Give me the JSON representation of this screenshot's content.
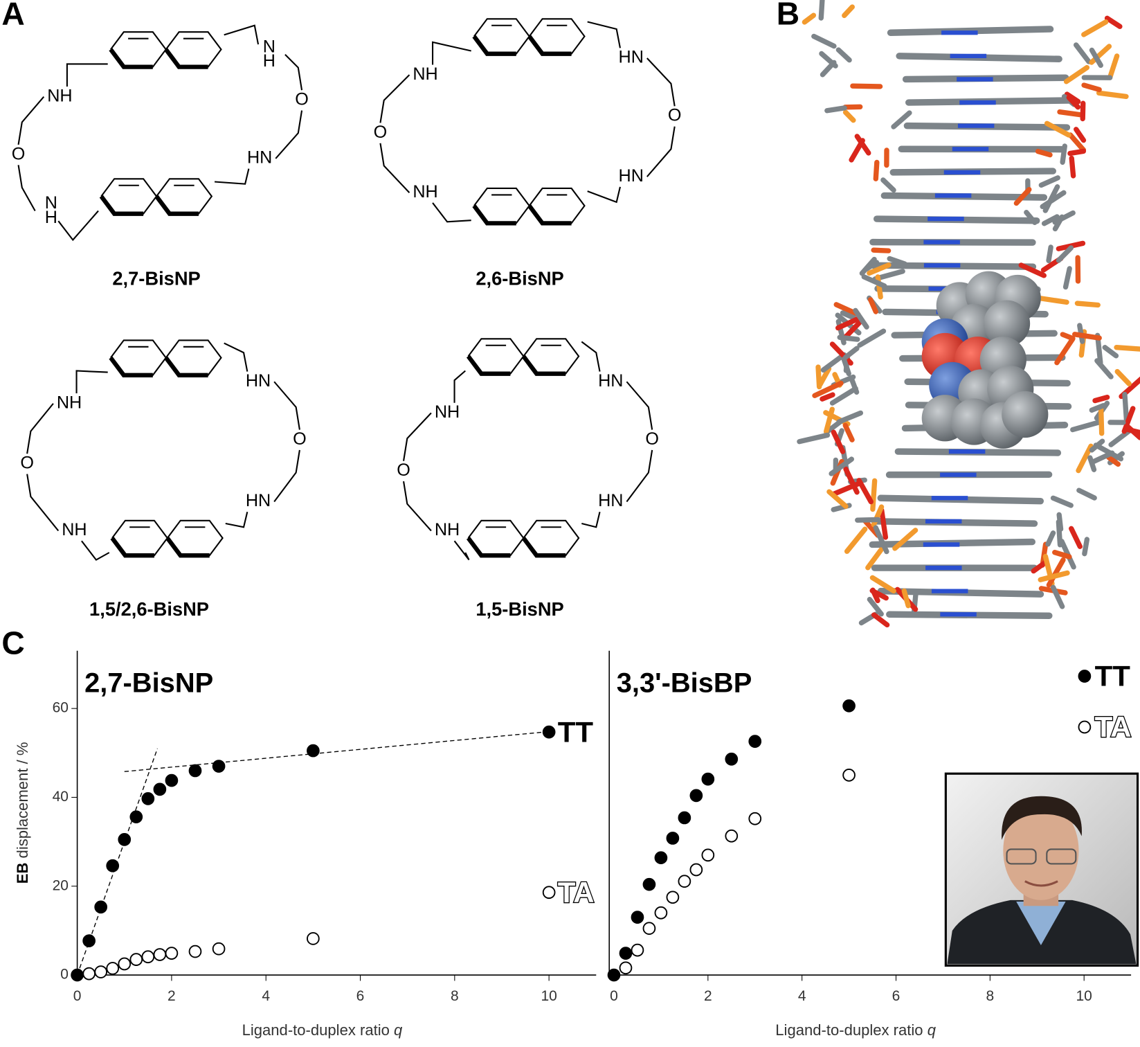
{
  "panels": {
    "a": "A",
    "b": "B",
    "c": "C"
  },
  "structures": [
    {
      "name": "2,7-BisNP",
      "atoms": [
        "NH",
        "O",
        "NH",
        "NH",
        "O",
        "HN"
      ]
    },
    {
      "name": "2,6-BisNP",
      "atoms": [
        "NH",
        "O",
        "NH",
        "HN",
        "O",
        "HN"
      ]
    },
    {
      "name": "1,5/2,6-BisNP",
      "atoms": [
        "NH",
        "O",
        "NH",
        "HN",
        "O",
        "HN"
      ]
    },
    {
      "name": "1,5-BisNP",
      "atoms": [
        "NH",
        "O",
        "NH",
        "HN",
        "O",
        "HN"
      ]
    }
  ],
  "chart_data": [
    {
      "type": "scatter",
      "title": "2,7-BisNP",
      "ylabel_bold": "EB",
      "ylabel": "displacement / %",
      "xlabel": "Ligand-to-duplex ratio",
      "xlabel_var": "q",
      "xlim": [
        0,
        11
      ],
      "ylim": [
        0,
        73
      ],
      "xticks": [
        0,
        2,
        4,
        6,
        8,
        10
      ],
      "yticks": [
        0,
        20,
        40,
        60
      ],
      "legend": "inline",
      "series": [
        {
          "name": "TT",
          "color": "#000000",
          "marker": "filled",
          "x": [
            0,
            0.25,
            0.5,
            0.75,
            1,
            1.25,
            1.5,
            1.75,
            2,
            2.5,
            3,
            5,
            10
          ],
          "values": [
            0,
            7.7,
            15.3,
            24.6,
            30.5,
            35.6,
            39.7,
            41.8,
            43.8,
            46,
            47,
            50.5,
            54.7
          ]
        },
        {
          "name": "TA",
          "color": "#000000",
          "marker": "open",
          "x": [
            0.25,
            0.5,
            0.75,
            1,
            1.25,
            1.5,
            1.75,
            2,
            2.5,
            3,
            5,
            10
          ],
          "values": [
            0.3,
            0.7,
            1.5,
            2.5,
            3.5,
            4.1,
            4.6,
            4.9,
            5.3,
            5.9,
            8.2,
            18.6
          ]
        }
      ],
      "trend_lines": [
        {
          "x": [
            0,
            1.7
          ],
          "y": [
            0,
            51
          ]
        },
        {
          "x": [
            1,
            10
          ],
          "y": [
            45.8,
            54.8
          ]
        }
      ]
    },
    {
      "type": "scatter",
      "title": "3,3'-BisBP",
      "xlabel": "Ligand-to-duplex ratio",
      "xlabel_var": "q",
      "xlim": [
        -0.1,
        11
      ],
      "ylim": [
        0,
        73
      ],
      "xticks": [
        0,
        2,
        4,
        6,
        8,
        10
      ],
      "legend": "upper right",
      "series": [
        {
          "name": "TT",
          "color": "#000000",
          "marker": "filled",
          "x": [
            0,
            0.25,
            0.5,
            0.75,
            1,
            1.25,
            1.5,
            1.75,
            2,
            2.5,
            3,
            5
          ],
          "values": [
            0,
            4.9,
            13,
            20.4,
            26.4,
            30.8,
            35.4,
            40.4,
            44.1,
            48.6,
            52.6,
            60.6
          ]
        },
        {
          "name": "TA",
          "color": "#000000",
          "marker": "open",
          "x": [
            0.25,
            0.5,
            0.75,
            1,
            1.25,
            1.5,
            1.75,
            2,
            2.5,
            3,
            5
          ],
          "values": [
            1.6,
            5.6,
            10.5,
            14,
            17.5,
            21.1,
            23.7,
            27,
            31.3,
            35.2,
            45
          ]
        }
      ]
    }
  ]
}
